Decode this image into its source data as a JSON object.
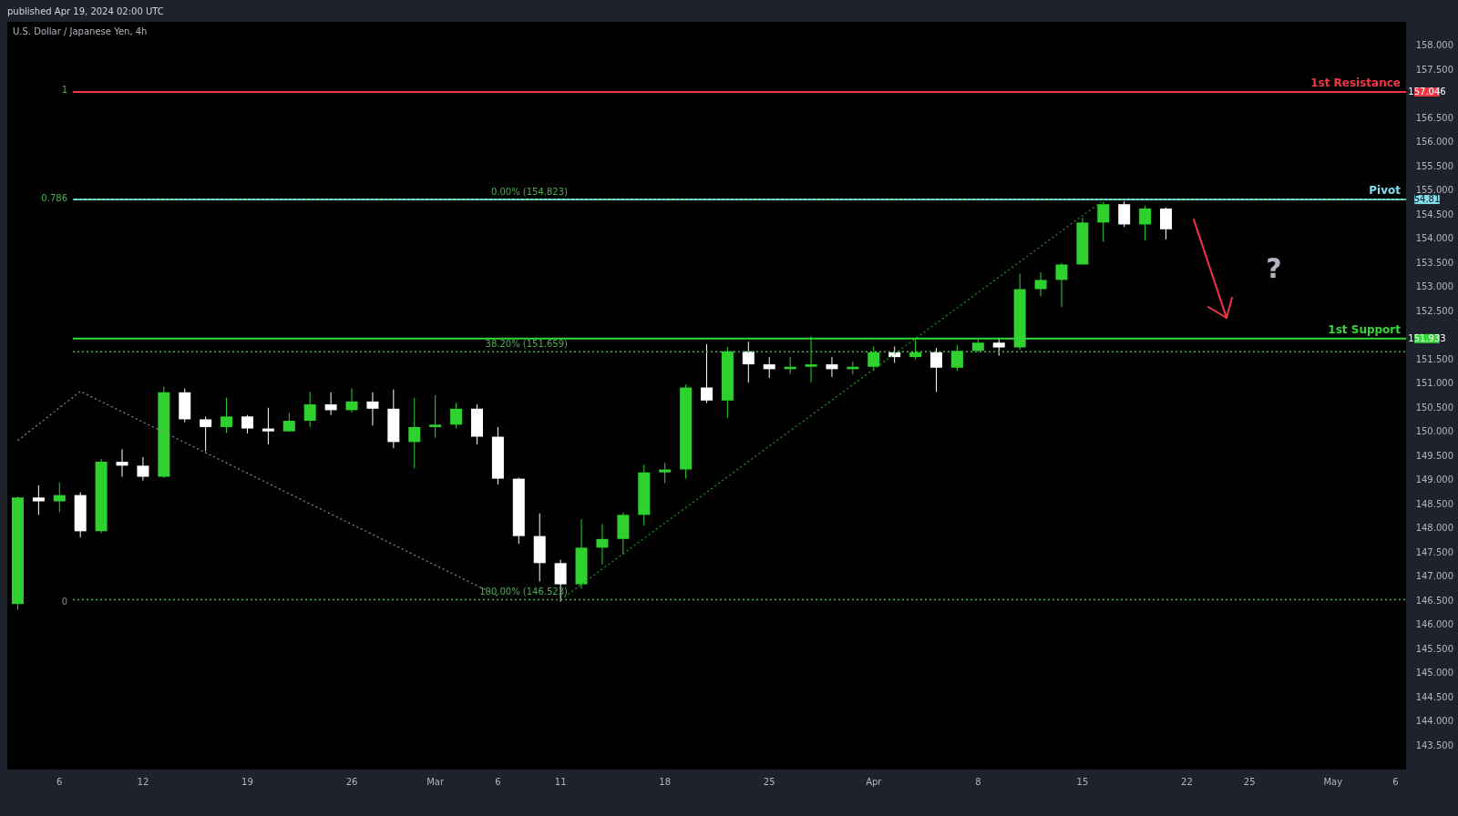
{
  "chart_data": {
    "type": "candlestick",
    "title": "U.S. Dollar / Japanese Yen, 4h",
    "categories": [
      null,
      null,
      "6",
      null,
      null,
      null,
      "12",
      null,
      null,
      null,
      null,
      "19",
      null,
      null,
      null,
      null,
      "26",
      null,
      null,
      null,
      "Mar",
      null,
      null,
      "6",
      null,
      null,
      "11",
      null,
      null,
      null,
      null,
      "18",
      null,
      null,
      null,
      null,
      "25",
      null,
      null,
      null,
      null,
      "Apr",
      null,
      null,
      null,
      null,
      "8",
      null,
      null,
      null,
      null,
      "15",
      null,
      null,
      null,
      null,
      "22",
      null,
      null,
      "25",
      null,
      null,
      null,
      "May",
      null,
      null,
      "6"
    ],
    "ohlc": [
      [
        146.43,
        148.66,
        146.31,
        148.64
      ],
      [
        148.64,
        148.89,
        148.28,
        148.56
      ],
      [
        148.56,
        148.95,
        148.34,
        148.69
      ],
      [
        148.69,
        148.75,
        147.81,
        147.94
      ],
      [
        147.94,
        149.44,
        147.9,
        149.38
      ],
      [
        149.38,
        149.64,
        149.07,
        149.3
      ],
      [
        149.3,
        149.48,
        148.99,
        149.07
      ],
      [
        149.07,
        150.94,
        149.05,
        150.82
      ],
      [
        150.82,
        150.9,
        150.2,
        150.26
      ],
      [
        150.26,
        150.32,
        149.6,
        150.1
      ],
      [
        150.1,
        150.71,
        149.98,
        150.32
      ],
      [
        150.32,
        150.35,
        149.97,
        150.07
      ],
      [
        150.07,
        150.5,
        149.74,
        150.01
      ],
      [
        150.01,
        150.4,
        150.0,
        150.23
      ],
      [
        150.23,
        150.83,
        150.1,
        150.57
      ],
      [
        150.57,
        150.82,
        150.35,
        150.45
      ],
      [
        150.45,
        150.9,
        150.4,
        150.63
      ],
      [
        150.63,
        150.82,
        150.13,
        150.48
      ],
      [
        150.48,
        150.88,
        149.66,
        149.79
      ],
      [
        149.79,
        150.7,
        149.25,
        150.1
      ],
      [
        150.1,
        150.76,
        149.88,
        150.15
      ],
      [
        150.15,
        150.6,
        150.07,
        150.48
      ],
      [
        150.48,
        150.57,
        149.74,
        149.9
      ],
      [
        149.9,
        150.1,
        148.91,
        149.03
      ],
      [
        149.03,
        149.05,
        147.68,
        147.84
      ],
      [
        147.84,
        148.31,
        146.9,
        147.28
      ],
      [
        147.28,
        147.35,
        146.48,
        146.84
      ],
      [
        146.84,
        148.19,
        146.75,
        147.6
      ],
      [
        147.6,
        148.09,
        147.25,
        147.78
      ],
      [
        147.78,
        148.33,
        147.46,
        148.28
      ],
      [
        148.28,
        149.32,
        148.06,
        149.16
      ],
      [
        149.16,
        149.36,
        148.94,
        149.22
      ],
      [
        149.22,
        150.98,
        149.03,
        150.92
      ],
      [
        150.92,
        151.82,
        150.6,
        150.65
      ],
      [
        150.65,
        151.76,
        150.29,
        151.67
      ],
      [
        151.67,
        151.87,
        151.02,
        151.4
      ],
      [
        151.4,
        151.55,
        151.12,
        151.3
      ],
      [
        151.3,
        151.55,
        151.2,
        151.35
      ],
      [
        151.35,
        151.98,
        151.02,
        151.4
      ],
      [
        151.4,
        151.55,
        151.14,
        151.3
      ],
      [
        151.3,
        151.46,
        151.19,
        151.35
      ],
      [
        151.35,
        151.77,
        151.27,
        151.65
      ],
      [
        151.65,
        151.77,
        151.43,
        151.55
      ],
      [
        151.55,
        151.95,
        151.5,
        151.65
      ],
      [
        151.65,
        151.74,
        150.83,
        151.33
      ],
      [
        151.33,
        151.8,
        151.27,
        151.68
      ],
      [
        151.68,
        151.95,
        151.65,
        151.85
      ],
      [
        151.85,
        151.95,
        151.58,
        151.75
      ],
      [
        151.75,
        153.28,
        151.7,
        152.96
      ],
      [
        152.96,
        153.31,
        152.81,
        153.15
      ],
      [
        153.15,
        153.5,
        152.59,
        153.47
      ],
      [
        153.47,
        154.44,
        153.47,
        154.34
      ],
      [
        154.34,
        154.77,
        153.94,
        154.72
      ],
      [
        154.72,
        154.78,
        154.25,
        154.3
      ],
      [
        154.3,
        154.69,
        153.97,
        154.63
      ],
      [
        154.63,
        154.65,
        153.99,
        154.2
      ],
      null,
      null,
      null,
      null,
      null,
      null,
      null,
      null,
      null,
      null,
      null
    ],
    "colors": [
      "#2ed12e",
      "#ffffff",
      "#2ed12e",
      "#ffffff",
      "#2ed12e",
      "#ffffff",
      "#ffffff",
      "#2ed12e",
      "#ffffff",
      "#ffffff",
      "#2ed12e",
      "#ffffff",
      "#ffffff",
      "#2ed12e",
      "#2ed12e",
      "#ffffff",
      "#2ed12e",
      "#ffffff",
      "#ffffff",
      "#2ed12e",
      "#2ed12e",
      "#2ed12e",
      "#ffffff",
      "#ffffff",
      "#ffffff",
      "#ffffff",
      "#ffffff",
      "#2ed12e",
      "#2ed12e",
      "#2ed12e",
      "#2ed12e",
      "#2ed12e",
      "#2ed12e",
      "#ffffff",
      "#2ed12e",
      "#ffffff",
      "#ffffff",
      "#2ed12e",
      "#2ed12e",
      "#ffffff",
      "#2ed12e",
      "#2ed12e",
      "#ffffff",
      "#2ed12e",
      "#ffffff",
      "#2ed12e",
      "#2ed12e",
      "#ffffff",
      "#2ed12e",
      "#2ed12e",
      "#2ed12e",
      "#2ed12e",
      "#2ed12e",
      "#ffffff",
      "#2ed12e",
      "#ffffff",
      null,
      null,
      null,
      null,
      null,
      null,
      null,
      null,
      null,
      null,
      null
    ],
    "series": [
      {
        "type": "line",
        "color": "#8a8d96",
        "line_style": "dotted",
        "values": [
          149.82,
          null,
          null,
          150.84,
          null,
          null,
          null,
          null,
          null,
          null,
          null,
          null,
          null,
          null,
          null,
          null,
          null,
          null,
          null,
          null,
          null,
          null,
          null,
          146.6,
          null,
          null,
          null,
          null,
          null,
          null,
          null,
          null,
          null,
          null,
          null,
          null,
          null,
          null,
          null,
          null,
          null,
          null,
          null,
          null,
          null,
          null,
          null,
          null,
          null,
          null,
          null,
          null,
          null,
          null,
          null,
          null,
          null,
          null,
          null,
          null,
          null,
          null,
          null,
          null,
          null,
          null,
          null
        ]
      },
      {
        "type": "line",
        "color": "#1f9e23",
        "line_style": "dotted",
        "values": [
          null,
          null,
          null,
          null,
          null,
          null,
          null,
          null,
          null,
          null,
          null,
          null,
          null,
          null,
          null,
          null,
          null,
          null,
          null,
          null,
          null,
          null,
          null,
          null,
          null,
          null,
          146.52,
          null,
          null,
          null,
          null,
          null,
          null,
          null,
          null,
          null,
          null,
          null,
          null,
          null,
          null,
          null,
          null,
          null,
          null,
          null,
          null,
          null,
          null,
          null,
          null,
          null,
          154.8,
          null,
          null,
          null,
          null,
          null,
          null,
          null,
          null,
          null,
          null,
          null,
          null,
          null,
          null
        ]
      }
    ],
    "ylim": [
      143.0,
      158.5
    ],
    "yticks": [
      {
        "value": 143.5,
        "label": "143.500"
      },
      {
        "value": 144.0,
        "label": "144.000"
      },
      {
        "value": 144.5,
        "label": "144.500"
      },
      {
        "value": 145.0,
        "label": "145.000"
      },
      {
        "value": 145.5,
        "label": "145.500"
      },
      {
        "value": 146.0,
        "label": "146.000"
      },
      {
        "value": 146.5,
        "label": "146.500"
      },
      {
        "value": 147.0,
        "label": "147.000"
      },
      {
        "value": 147.5,
        "label": "147.500"
      },
      {
        "value": 148.0,
        "label": "148.000"
      },
      {
        "value": 148.5,
        "label": "148.500"
      },
      {
        "value": 149.0,
        "label": "149.000"
      },
      {
        "value": 149.5,
        "label": "149.500"
      },
      {
        "value": 150.0,
        "label": "150.000"
      },
      {
        "value": 150.5,
        "label": "150.500"
      },
      {
        "value": 151.0,
        "label": "151.000"
      },
      {
        "value": 151.5,
        "label": "151.500"
      },
      {
        "value": 152.5,
        "label": "152.500"
      },
      {
        "value": 153.0,
        "label": "153.000"
      },
      {
        "value": 153.5,
        "label": "153.500"
      },
      {
        "value": 154.0,
        "label": "154.000"
      },
      {
        "value": 154.5,
        "label": "154.500"
      },
      {
        "value": 155.0,
        "label": "155.000"
      },
      {
        "value": 155.5,
        "label": "155.500"
      },
      {
        "value": 156.0,
        "label": "156.000"
      },
      {
        "value": 156.5,
        "label": "156.500"
      },
      {
        "value": 157.5,
        "label": "157.500"
      },
      {
        "value": 158.0,
        "label": "158.000"
      }
    ],
    "ref_lines": [
      {
        "axis": "y",
        "value": 157.046,
        "label": "1st Resistance",
        "color": "#f23645",
        "line_style": "solid"
      },
      {
        "axis": "y",
        "value": 154.817,
        "label": "Pivot",
        "color": "#80deea",
        "line_style": "solid"
      },
      {
        "axis": "y",
        "value": 151.933,
        "label": "1st Support",
        "color": "#33d93a",
        "line_style": "solid"
      },
      {
        "axis": "y",
        "value": 154.823,
        "label": "0.00% (154.823)",
        "color": "#4caf50",
        "line_style": "dotted"
      },
      {
        "axis": "y",
        "value": 151.659,
        "label": "38.20% (151.659)",
        "color": "#4caf50",
        "line_style": "dotted"
      },
      {
        "axis": "y",
        "value": 146.523,
        "label": "100.00% (146.523)",
        "color": "#4caf50",
        "line_style": "dotted"
      }
    ],
    "annotations": [
      "published Apr 19, 2024 02:00 UTC",
      "?",
      "1",
      "0.786",
      "0",
      "157.046",
      "154.817",
      "151.933"
    ],
    "grid": false
  }
}
